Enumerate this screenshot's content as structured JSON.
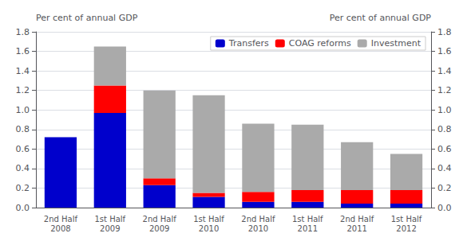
{
  "chart_data": {
    "type": "bar",
    "stacked": true,
    "categories": [
      "2nd Half\n2008",
      "1st Half\n2009",
      "2nd Half\n2009",
      "1st Half\n2010",
      "2nd Half\n2010",
      "1st Half\n2011",
      "2nd Half\n2011",
      "1st Half\n2012"
    ],
    "series": [
      {
        "name": "Transfers",
        "color": "#0000cc",
        "values": [
          0.72,
          0.97,
          0.23,
          0.11,
          0.06,
          0.06,
          0.04,
          0.04
        ]
      },
      {
        "name": "COAG reforms",
        "color": "#ff0000",
        "values": [
          0.0,
          0.28,
          0.07,
          0.04,
          0.1,
          0.12,
          0.14,
          0.14
        ]
      },
      {
        "name": "Investment",
        "color": "#aaaaaa",
        "values": [
          0.0,
          0.4,
          0.9,
          1.0,
          0.7,
          0.67,
          0.49,
          0.37
        ]
      }
    ],
    "ylabel": "Per cent of annual GDP",
    "y2label": "Per cent of annual GDP",
    "ylim": [
      0.0,
      1.8
    ],
    "yticks": [
      {
        "value": 0,
        "label": "0.0"
      },
      0.2,
      0.4,
      0.6,
      0.8,
      {
        "value": 1,
        "label": "1.0"
      },
      1.2,
      1.4,
      1.6,
      1.8
    ],
    "y2lim": [
      0.0,
      1.8
    ],
    "y2ticks": [
      {
        "value": 0,
        "label": "0.0"
      },
      0.2,
      0.4,
      0.6,
      0.8,
      {
        "value": 1,
        "label": "1.0"
      },
      1.2,
      1.4,
      1.6,
      1.8
    ],
    "grid": true,
    "legend": "upper right"
  }
}
